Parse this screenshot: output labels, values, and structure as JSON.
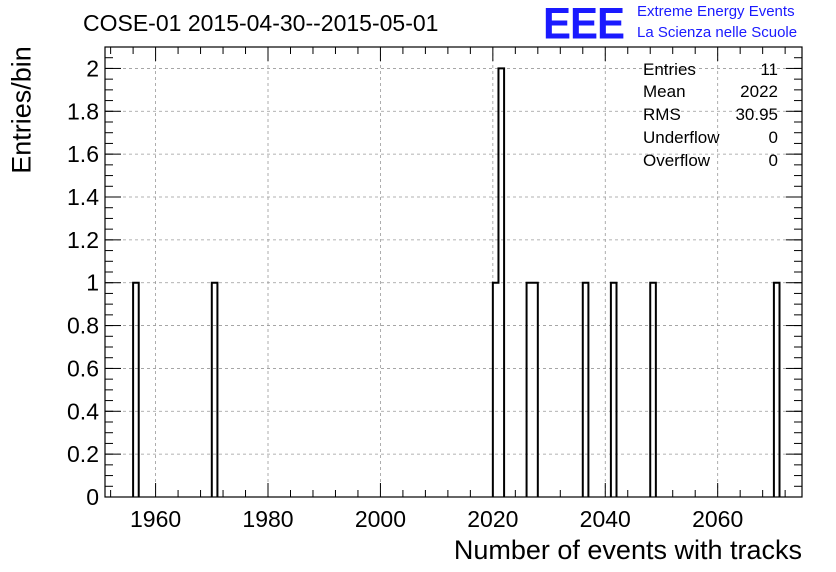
{
  "header": {
    "title": "COSE-01 2015-04-30--2015-05-01",
    "logo_text": "EEE",
    "subtitle_line1": "Extreme Energy Events",
    "subtitle_line2": "La Scienza nelle Scuole"
  },
  "stats_box": {
    "rows": [
      {
        "label": "Entries",
        "value": "11"
      },
      {
        "label": "Mean",
        "value": "2022"
      },
      {
        "label": "RMS",
        "value": "30.95"
      },
      {
        "label": "Underflow",
        "value": "0"
      },
      {
        "label": "Overflow",
        "value": "0"
      }
    ]
  },
  "colors": {
    "logo": "#1a1aff",
    "histogram": "#000000",
    "grid": "#999999"
  },
  "chart_data": {
    "type": "bar",
    "style": "histogram-step",
    "title": "COSE-01 2015-04-30--2015-05-01",
    "xlabel": "Number of events with tracks",
    "ylabel": "Entries/bin",
    "xlim": [
      1951,
      2075
    ],
    "ylim": [
      0,
      2.1
    ],
    "bin_width": 1,
    "bins": [
      {
        "x": 1956,
        "value": 1
      },
      {
        "x": 1970,
        "value": 1
      },
      {
        "x": 2020,
        "value": 1
      },
      {
        "x": 2021,
        "value": 2
      },
      {
        "x": 2026,
        "value": 1
      },
      {
        "x": 2027,
        "value": 1
      },
      {
        "x": 2036,
        "value": 1
      },
      {
        "x": 2041,
        "value": 1
      },
      {
        "x": 2048,
        "value": 1
      },
      {
        "x": 2070,
        "value": 1
      }
    ],
    "x_ticks": [
      1960,
      1980,
      2000,
      2020,
      2040,
      2060
    ],
    "x_tick_labels": [
      "1960",
      "1980",
      "2000",
      "2020",
      "2040",
      "2060"
    ],
    "y_ticks": [
      0,
      0.2,
      0.4,
      0.6,
      0.8,
      1,
      1.2,
      1.4,
      1.6,
      1.8,
      2
    ],
    "y_tick_labels": [
      "0",
      "0.2",
      "0.4",
      "0.6",
      "0.8",
      "1",
      "1.2",
      "1.4",
      "1.6",
      "1.8",
      "2"
    ],
    "grid": true,
    "legend": "none"
  }
}
